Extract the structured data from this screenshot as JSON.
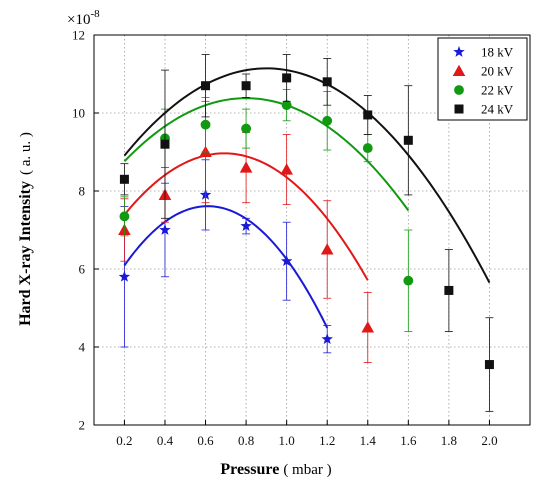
{
  "chart_data": {
    "type": "scatter",
    "xlabel": "Pressure",
    "xunit": "( mbar )",
    "ylabel": "Hard X-ray Intensity",
    "yunit": "( a. u. )",
    "ymultiplier": "×10",
    "yexponent": "-8",
    "xlim": [
      0.05,
      2.2
    ],
    "ylim": [
      2,
      12
    ],
    "xticks": [
      0.2,
      0.4,
      0.6,
      0.8,
      1.0,
      1.2,
      1.4,
      1.6,
      1.8,
      2.0
    ],
    "xtick_labels": [
      "0.2",
      "0.4",
      "0.6",
      "0.8",
      "1.0",
      "1.2",
      "1.4",
      "1.6",
      "1.8",
      "2.0"
    ],
    "yticks": [
      2,
      4,
      6,
      8,
      10,
      12
    ],
    "ytick_labels": [
      "2",
      "4",
      "6",
      "8",
      "10",
      "12"
    ],
    "grid": true,
    "legend_position": "top-right",
    "series": [
      {
        "name": "18 kV",
        "marker": "star",
        "color": "#1a1ad6",
        "x": [
          0.2,
          0.4,
          0.6,
          0.8,
          1.0,
          1.2
        ],
        "y": [
          5.8,
          7.0,
          7.9,
          7.1,
          6.2,
          4.2
        ],
        "err": [
          1.8,
          1.2,
          0.9,
          0.2,
          1.0,
          0.35
        ],
        "fit": [
          -9.0,
          11.0,
          4.25
        ]
      },
      {
        "name": "20 kV",
        "marker": "triangle",
        "color": "#e01818",
        "x": [
          0.2,
          0.4,
          0.6,
          0.8,
          1.0,
          1.2,
          1.4
        ],
        "y": [
          7.0,
          7.9,
          9.0,
          8.6,
          8.55,
          6.5,
          4.5
        ],
        "err": [
          0.8,
          0.7,
          1.3,
          0.9,
          0.9,
          1.25,
          0.9
        ],
        "fit": [
          -6.5,
          9.0,
          5.85
        ]
      },
      {
        "name": "22 kV",
        "marker": "circle",
        "color": "#119a11",
        "x": [
          0.2,
          0.4,
          0.6,
          0.8,
          1.0,
          1.2,
          1.4,
          1.6
        ],
        "y": [
          7.35,
          9.35,
          9.7,
          9.6,
          10.2,
          9.8,
          9.1,
          5.7
        ],
        "err": [
          0.5,
          0.75,
          0.7,
          0.5,
          0.4,
          0.75,
          0.35,
          1.3
        ],
        "fit": [
          -4.5,
          7.2,
          7.5
        ]
      },
      {
        "name": "24 kV",
        "marker": "square",
        "color": "#111111",
        "x": [
          0.2,
          0.4,
          0.6,
          0.8,
          1.0,
          1.2,
          1.4,
          1.6,
          1.8,
          2.0
        ],
        "y": [
          8.3,
          9.2,
          10.7,
          10.7,
          10.9,
          10.8,
          9.95,
          9.3,
          5.45,
          3.55
        ],
        "err": [
          0.4,
          1.9,
          0.8,
          0.3,
          0.6,
          0.6,
          0.5,
          1.4,
          1.05,
          1.2
        ],
        "fit": [
          -4.55,
          8.2,
          7.45
        ]
      }
    ]
  }
}
